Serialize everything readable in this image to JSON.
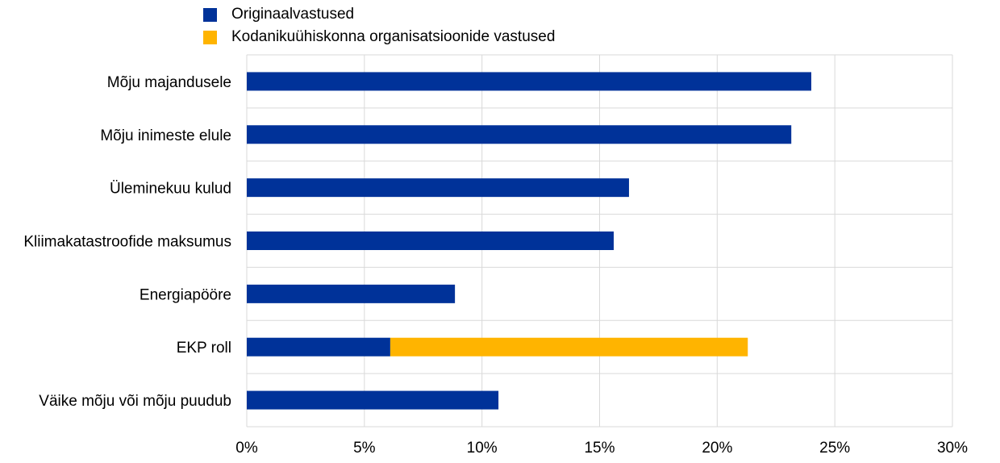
{
  "chart_data": {
    "type": "bar",
    "orientation": "horizontal",
    "stacked": true,
    "categories": [
      "Mõju majandusele",
      "Mõju inimeste elule",
      "Üleminekuu kulud",
      "Kliimakatastroofide maksumus",
      "Energiapööre",
      "EKP roll",
      "Väike mõju või mõju puudub"
    ],
    "series": [
      {
        "name": "Originaalvastused",
        "color": "#003299",
        "values": [
          24.0,
          23.15,
          16.25,
          15.6,
          8.85,
          6.1,
          10.7
        ]
      },
      {
        "name": "Kodanikuühiskonna organisatsioonide vastused",
        "color": "#FFB400",
        "values": [
          0,
          0,
          0,
          0,
          0,
          15.2,
          0
        ]
      }
    ],
    "xlim": [
      0,
      30
    ],
    "xticks": [
      "0%",
      "5%",
      "10%",
      "15%",
      "20%",
      "25%",
      "30%"
    ],
    "xlabel": "",
    "ylabel": "",
    "grid": true,
    "legend_position": "top-left"
  }
}
